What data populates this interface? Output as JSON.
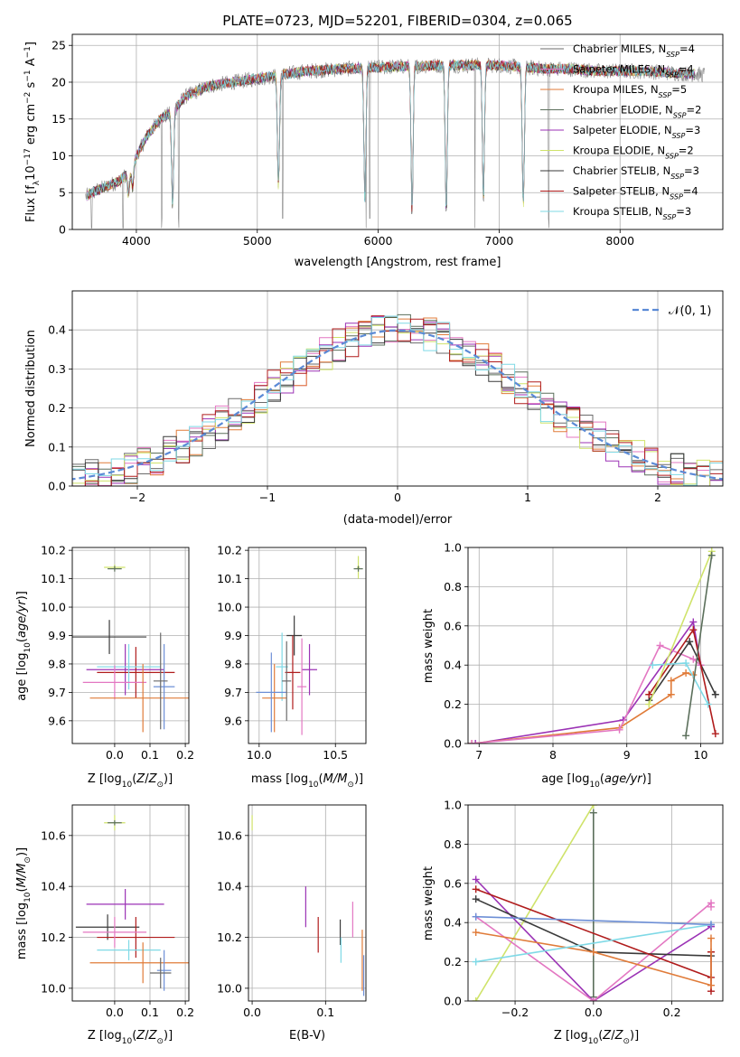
{
  "colors": {
    "Chabrier MILES": "#6b6b6b",
    "Salpeter MILES": "#e377c2",
    "Kroupa MILES": "#e07b39",
    "Chabrier ELODIE": "#5b6f5b",
    "Salpeter ELODIE": "#9b32b5",
    "Kroupa ELODIE": "#cfe36a",
    "Chabrier STELIB": "#3a3a3a",
    "Salpeter STELIB": "#b01c1c",
    "Kroupa STELIB": "#7fd9e6",
    "extra_blue": "#6d8fd6",
    "normal_curve": "#5b8ad6"
  },
  "chart_data": [
    {
      "id": "spectrum",
      "type": "line",
      "title": "PLATE=0723, MJD=52201, FIBERID=0304, z=0.065",
      "xlabel": "wavelength [Angstrom, rest frame]",
      "ylabel": "Flux [f_λ10^-17 erg cm^-2 s^-1 A^-1]",
      "xlim": [
        3470,
        8850
      ],
      "ylim": [
        0,
        26.5
      ],
      "xticks": [
        4000,
        5000,
        6000,
        7000,
        8000
      ],
      "yticks": [
        0,
        5,
        10,
        15,
        20,
        25
      ],
      "legend_location": "right",
      "legend": [
        {
          "model": "Chabrier MILES",
          "nssp": "4"
        },
        {
          "model": "Salpeter MILES",
          "nssp": "4"
        },
        {
          "model": "Kroupa MILES",
          "nssp": "5"
        },
        {
          "model": "Chabrier ELODIE",
          "nssp": "2"
        },
        {
          "model": "Salpeter ELODIE",
          "nssp": "3"
        },
        {
          "model": "Kroupa ELODIE",
          "nssp": "2"
        },
        {
          "model": "Chabrier STELIB",
          "nssp": "3"
        },
        {
          "model": "Salpeter STELIB",
          "nssp": "4"
        },
        {
          "model": "Kroupa STELIB",
          "nssp": "3"
        }
      ],
      "continuum": [
        [
          3580,
          4.5
        ],
        [
          3700,
          5.5
        ],
        [
          3850,
          6.5
        ],
        [
          3950,
          8
        ],
        [
          4000,
          10
        ],
        [
          4100,
          13
        ],
        [
          4200,
          15
        ],
        [
          4300,
          16
        ],
        [
          4400,
          18
        ],
        [
          4600,
          19.5
        ],
        [
          4800,
          20
        ],
        [
          5000,
          20.5
        ],
        [
          5200,
          21
        ],
        [
          5400,
          21.5
        ],
        [
          5700,
          21.8
        ],
        [
          6000,
          22
        ],
        [
          6300,
          22.2
        ],
        [
          6600,
          22.3
        ],
        [
          7000,
          22.3
        ],
        [
          7200,
          22
        ],
        [
          7400,
          21.8
        ],
        [
          7600,
          21.8
        ],
        [
          7800,
          21.5
        ],
        [
          8200,
          21.5
        ],
        [
          8700,
          21
        ]
      ],
      "absorption": [
        [
          3934,
          3
        ],
        [
          3969,
          3
        ],
        [
          4300,
          13
        ],
        [
          5175,
          15
        ],
        [
          5890,
          18
        ],
        [
          6280,
          20
        ],
        [
          6563,
          20
        ],
        [
          6870,
          18
        ],
        [
          7200,
          19
        ]
      ],
      "spikes": [
        3630,
        3890,
        4210,
        4350,
        5210,
        5900,
        5930,
        6800,
        7410
      ]
    },
    {
      "id": "residual-histogram",
      "type": "histogram",
      "xlabel": "(data-model)/error",
      "ylabel": "Normed distribution",
      "xlim": [
        -2.5,
        2.5
      ],
      "ylim": [
        0,
        0.5
      ],
      "xticks": [
        -2,
        -1,
        0,
        1,
        2
      ],
      "yticks": [
        0.0,
        0.1,
        0.2,
        0.3,
        0.4
      ],
      "bin_width": 0.1,
      "legend": [
        {
          "label": "𝒩(0, 1)"
        }
      ],
      "legend_location": "upper right"
    },
    {
      "id": "age-vs-Z",
      "type": "scatter",
      "xlabel": "Z [log10(Z/Z⊙)]",
      "ylabel": "age  [log10(age/yr)]",
      "xlim": [
        -0.12,
        0.21
      ],
      "ylim": [
        9.52,
        10.21
      ],
      "xticks": [
        0.0,
        0.1,
        0.2
      ],
      "yticks": [
        9.6,
        9.7,
        9.8,
        9.9,
        10.0,
        10.1,
        10.2
      ],
      "points": [
        {
          "model": "Kroupa ELODIE",
          "x": 0.0,
          "y": 10.14,
          "xerr": 0.03,
          "yerr": 0.01
        },
        {
          "model": "Chabrier ELODIE",
          "x": 0.0,
          "y": 10.135,
          "xerr": 0.02,
          "yerr": 0.01
        },
        {
          "model": "Chabrier STELIB",
          "x": -0.015,
          "y": 9.895,
          "xerr": 0.105,
          "yerr": 0.06
        },
        {
          "model": "Salpeter ELODIE",
          "x": 0.03,
          "y": 9.78,
          "xerr": 0.11,
          "yerr": 0.09
        },
        {
          "model": "Salpeter STELIB",
          "x": 0.06,
          "y": 9.77,
          "xerr": 0.11,
          "yerr": 0.09
        },
        {
          "model": "Kroupa STELIB",
          "x": 0.04,
          "y": 9.79,
          "xerr": 0.09,
          "yerr": 0.08
        },
        {
          "model": "Salpeter MILES",
          "x": 0.0,
          "y": 9.735,
          "xerr": 0.09,
          "yerr": 0.06
        },
        {
          "model": "Kroupa MILES",
          "x": 0.08,
          "y": 9.68,
          "xerr": 0.15,
          "yerr": 0.12
        },
        {
          "model": "extra_blue",
          "x": 0.14,
          "y": 9.72,
          "xerr": 0.03,
          "yerr": 0.15
        },
        {
          "model": "Chabrier MILES",
          "x": 0.13,
          "y": 9.74,
          "xerr": 0.02,
          "yerr": 0.17
        }
      ]
    },
    {
      "id": "age-vs-mass",
      "type": "scatter",
      "xlabel": "mass [log10(M/M⊙)]",
      "ylabel": "",
      "xlim": [
        9.93,
        10.7
      ],
      "ylim": [
        9.52,
        10.21
      ],
      "xticks": [
        10.0,
        10.5
      ],
      "yticks": [
        9.6,
        9.7,
        9.8,
        9.9,
        10.0,
        10.1,
        10.2
      ],
      "points": [
        {
          "model": "Kroupa ELODIE",
          "x": 10.65,
          "y": 10.14,
          "xerr": 0.01,
          "yerr": 0.04
        },
        {
          "model": "Chabrier ELODIE",
          "x": 10.65,
          "y": 10.135,
          "xerr": 0.03,
          "yerr": 0.01
        },
        {
          "model": "Chabrier STELIB",
          "x": 10.23,
          "y": 9.9,
          "xerr": 0.05,
          "yerr": 0.07
        },
        {
          "model": "Salpeter STELIB",
          "x": 10.22,
          "y": 9.77,
          "xerr": 0.05,
          "yerr": 0.13
        },
        {
          "model": "Salpeter ELODIE",
          "x": 10.33,
          "y": 9.78,
          "xerr": 0.05,
          "yerr": 0.09
        },
        {
          "model": "Kroupa STELIB",
          "x": 10.15,
          "y": 9.79,
          "xerr": 0.04,
          "yerr": 0.12
        },
        {
          "model": "Kroupa MILES",
          "x": 10.1,
          "y": 9.68,
          "xerr": 0.08,
          "yerr": 0.12
        },
        {
          "model": "extra_blue",
          "x": 10.08,
          "y": 9.7,
          "xerr": 0.1,
          "yerr": 0.14
        },
        {
          "model": "Salpeter MILES",
          "x": 10.28,
          "y": 9.72,
          "xerr": 0.03,
          "yerr": 0.17
        },
        {
          "model": "Chabrier MILES",
          "x": 10.18,
          "y": 9.74,
          "xerr": 0.03,
          "yerr": 0.14
        }
      ]
    },
    {
      "id": "mass-weight-vs-age",
      "type": "line",
      "xlabel": "age  [log10(age/yr)]",
      "ylabel": "mass weight",
      "xlim": [
        6.85,
        10.3
      ],
      "ylim": [
        0,
        1
      ],
      "xticks": [
        7,
        8,
        9,
        10
      ],
      "yticks": [
        0.0,
        0.2,
        0.4,
        0.6,
        0.8,
        1.0
      ],
      "series": [
        {
          "model": "Salpeter ELODIE",
          "x": [
            6.95,
            8.95,
            9.9,
            10.0
          ],
          "y": [
            0.0,
            0.12,
            0.62,
            0.4
          ]
        },
        {
          "model": "Kroupa MILES",
          "x": [
            6.9,
            8.9,
            9.6,
            9.6,
            9.8,
            9.9
          ],
          "y": [
            0.0,
            0.08,
            0.25,
            0.32,
            0.36,
            0.35
          ]
        },
        {
          "model": "Salpeter MILES",
          "x": [
            6.9,
            8.9,
            9.45,
            9.9,
            10.0
          ],
          "y": [
            0.0,
            0.07,
            0.5,
            0.43,
            0.4
          ]
        },
        {
          "model": "Chabrier STELIB",
          "x": [
            9.3,
            9.85,
            10.2
          ],
          "y": [
            0.22,
            0.52,
            0.25
          ]
        },
        {
          "model": "Salpeter STELIB",
          "x": [
            9.3,
            9.9,
            10.2
          ],
          "y": [
            0.25,
            0.58,
            0.05
          ]
        },
        {
          "model": "Kroupa STELIB",
          "x": [
            9.35,
            9.8,
            10.1
          ],
          "y": [
            0.4,
            0.41,
            0.2
          ]
        },
        {
          "model": "Kroupa ELODIE",
          "x": [
            9.3,
            10.15
          ],
          "y": [
            0.2,
            0.98
          ]
        },
        {
          "model": "Chabrier ELODIE",
          "x": [
            9.8,
            10.15
          ],
          "y": [
            0.04,
            0.96
          ]
        }
      ]
    },
    {
      "id": "mass-vs-Z",
      "type": "scatter",
      "xlabel": "Z [log10(Z/Z⊙)]",
      "ylabel": "mass [log10(M/M⊙)]",
      "xlim": [
        -0.12,
        0.21
      ],
      "ylim": [
        9.95,
        10.72
      ],
      "xticks": [
        0.0,
        0.1,
        0.2
      ],
      "yticks": [
        10.0,
        10.2,
        10.4,
        10.6
      ],
      "points": [
        {
          "model": "Kroupa ELODIE",
          "x": 0.0,
          "y": 10.65,
          "xerr": 0.03,
          "yerr": 0.03
        },
        {
          "model": "Chabrier ELODIE",
          "x": 0.0,
          "y": 10.65,
          "xerr": 0.02,
          "yerr": 0.01
        },
        {
          "model": "Salpeter ELODIE",
          "x": 0.03,
          "y": 10.33,
          "xerr": 0.11,
          "yerr": 0.06
        },
        {
          "model": "Chabrier STELIB",
          "x": -0.02,
          "y": 10.24,
          "xerr": 0.09,
          "yerr": 0.05
        },
        {
          "model": "Salpeter STELIB",
          "x": 0.06,
          "y": 10.2,
          "xerr": 0.11,
          "yerr": 0.08
        },
        {
          "model": "Salpeter MILES",
          "x": 0.0,
          "y": 10.22,
          "xerr": 0.09,
          "yerr": 0.06
        },
        {
          "model": "Kroupa STELIB",
          "x": 0.04,
          "y": 10.15,
          "xerr": 0.09,
          "yerr": 0.04
        },
        {
          "model": "Kroupa MILES",
          "x": 0.08,
          "y": 10.1,
          "xerr": 0.15,
          "yerr": 0.08
        },
        {
          "model": "extra_blue",
          "x": 0.14,
          "y": 10.07,
          "xerr": 0.02,
          "yerr": 0.08
        },
        {
          "model": "Chabrier MILES",
          "x": 0.13,
          "y": 10.06,
          "xerr": 0.03,
          "yerr": 0.06
        }
      ]
    },
    {
      "id": "mass-vs-EBV",
      "type": "scatter",
      "xlabel": "E(B-V)",
      "ylabel": "",
      "xlim": [
        -0.005,
        0.155
      ],
      "ylim": [
        9.95,
        10.72
      ],
      "xticks": [
        0.0,
        0.1
      ],
      "yticks": [
        10.0,
        10.2,
        10.4,
        10.6
      ],
      "points": [
        {
          "model": "Kroupa ELODIE",
          "x": 0.0,
          "y": 10.65,
          "xerr": 0.0,
          "yerr": 0.03
        },
        {
          "model": "Salpeter ELODIE",
          "x": 0.073,
          "y": 10.32,
          "xerr": 0.0,
          "yerr": 0.08
        },
        {
          "model": "Salpeter STELIB",
          "x": 0.09,
          "y": 10.21,
          "xerr": 0.0,
          "yerr": 0.07
        },
        {
          "model": "Chabrier STELIB",
          "x": 0.12,
          "y": 10.22,
          "xerr": 0.0,
          "yerr": 0.05
        },
        {
          "model": "Kroupa STELIB",
          "x": 0.121,
          "y": 10.15,
          "xerr": 0.0,
          "yerr": 0.05
        },
        {
          "model": "Salpeter MILES",
          "x": 0.137,
          "y": 10.27,
          "xerr": 0.0,
          "yerr": 0.07
        },
        {
          "model": "Kroupa MILES",
          "x": 0.15,
          "y": 10.11,
          "xerr": 0.0,
          "yerr": 0.12
        },
        {
          "model": "extra_blue",
          "x": 0.152,
          "y": 10.05,
          "xerr": 0.0,
          "yerr": 0.08
        }
      ]
    },
    {
      "id": "mass-weight-vs-Z",
      "type": "line",
      "xlabel": "Z [log10(Z/Z⊙)]",
      "ylabel": "mass weight",
      "xlim": [
        -0.32,
        0.33
      ],
      "ylim": [
        0,
        1
      ],
      "xticks": [
        -0.2,
        0.0,
        0.2
      ],
      "yticks": [
        0.0,
        0.2,
        0.4,
        0.6,
        0.8,
        1.0
      ],
      "series": [
        {
          "model": "Kroupa ELODIE",
          "x": [
            -0.3,
            0.0
          ],
          "y": [
            0.0,
            1.0
          ]
        },
        {
          "model": "Chabrier ELODIE",
          "x": [
            0.0,
            0.0
          ],
          "y": [
            0.02,
            0.96
          ]
        },
        {
          "model": "Salpeter ELODIE",
          "x": [
            -0.3,
            0.0,
            0.3,
            0.3
          ],
          "y": [
            0.62,
            0.0,
            0.38,
            0.38
          ]
        },
        {
          "model": "Salpeter MILES",
          "x": [
            -0.3,
            0.0,
            0.3,
            0.3
          ],
          "y": [
            0.43,
            0.0,
            0.5,
            0.48
          ]
        },
        {
          "model": "Chabrier STELIB",
          "x": [
            -0.3,
            0.0,
            0.3
          ],
          "y": [
            0.52,
            0.25,
            0.23
          ]
        },
        {
          "model": "Salpeter STELIB",
          "x": [
            -0.3,
            0.3,
            0.3,
            0.3
          ],
          "y": [
            0.57,
            0.12,
            0.05,
            0.25
          ]
        },
        {
          "model": "Kroupa MILES",
          "x": [
            -0.3,
            0.0,
            0.3,
            0.3
          ],
          "y": [
            0.35,
            0.25,
            0.08,
            0.32
          ]
        },
        {
          "model": "Kroupa STELIB",
          "x": [
            -0.3,
            0.3
          ],
          "y": [
            0.2,
            0.39
          ]
        },
        {
          "model": "extra_blue",
          "x": [
            -0.3,
            0.3
          ],
          "y": [
            0.43,
            0.39
          ]
        }
      ]
    }
  ]
}
